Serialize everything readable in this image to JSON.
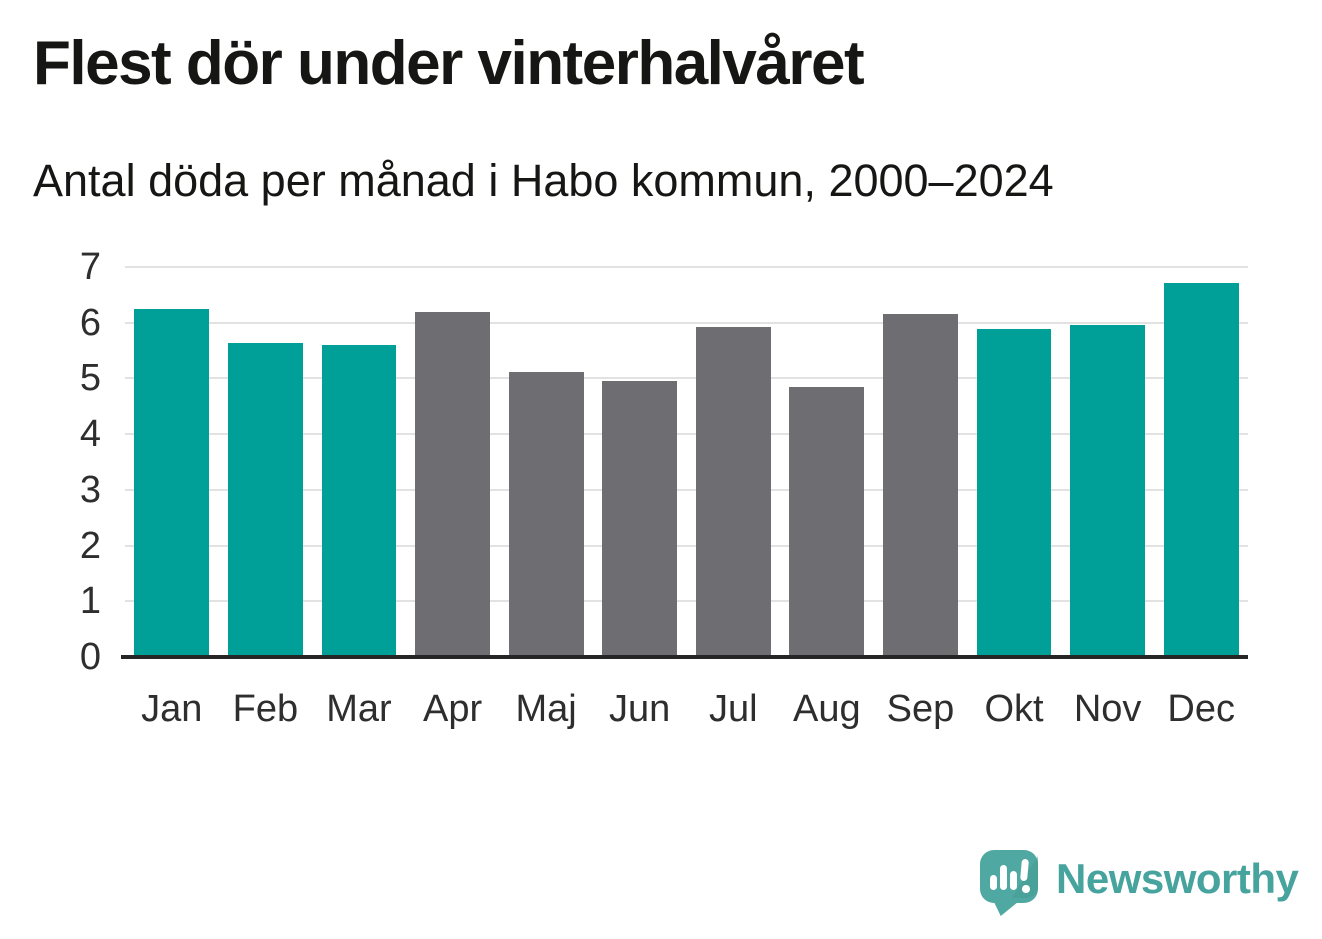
{
  "header": {
    "title": "Flest dör under vinterhalvåret",
    "subtitle": "Antal döda per månad i Habo kommun, 2000–2024"
  },
  "chart_data": {
    "type": "bar",
    "title": "Flest dör under vinterhalvåret",
    "subtitle": "Antal döda per månad i Habo kommun, 2000–2024",
    "categories": [
      "Jan",
      "Feb",
      "Mar",
      "Apr",
      "Maj",
      "Jun",
      "Jul",
      "Aug",
      "Sep",
      "Okt",
      "Nov",
      "Dec"
    ],
    "values": [
      6.24,
      5.64,
      5.6,
      6.2,
      5.12,
      4.96,
      5.92,
      4.84,
      6.16,
      5.88,
      5.96,
      6.72
    ],
    "highlighted": [
      true,
      true,
      true,
      false,
      false,
      false,
      false,
      false,
      false,
      true,
      true,
      true
    ],
    "highlight_color": "#00a098",
    "base_color": "#6d6d72",
    "xlabel": "",
    "ylabel": "",
    "ylim": [
      0,
      7
    ],
    "yticks": [
      0,
      1,
      2,
      3,
      4,
      5,
      6,
      7
    ],
    "grid": true,
    "legend_position": "none",
    "bar_width_ratio": 0.8
  },
  "branding": {
    "logo_text": "Newsworthy",
    "logo_icon": "speech-bubble-with-bar-chart-and-exclamation"
  },
  "colors": {
    "background": "#ffffff",
    "title_text": "#161614",
    "tick_text": "#2e2e2e",
    "grid": "#e2e2e2",
    "axis": "#262626",
    "bar_highlight": "#00a098",
    "bar_base": "#6d6d72",
    "logo_teal": "#46a39d",
    "logo_icon_fill": "#4fa8a1"
  }
}
